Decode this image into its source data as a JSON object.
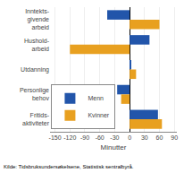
{
  "chart_data": {
    "type": "bar",
    "orientation": "horizontal",
    "categories": [
      "Inntekts-\ngivende\narbeid",
      "Hushold-\narbeid",
      "Utdanning",
      "Personlige\nbehov",
      "Fritids-\naktiviteter"
    ],
    "series": [
      {
        "name": "Menn",
        "color": "#2255aa",
        "values": [
          -45,
          40,
          3,
          -25,
          57
        ]
      },
      {
        "name": "Kvinner",
        "color": "#e8a020",
        "values": [
          60,
          -120,
          13,
          -17,
          65
        ]
      }
    ],
    "xlabel": "Minutter",
    "xlim": [
      -160,
      95
    ],
    "xticks": [
      -150,
      -120,
      -90,
      -60,
      -30,
      0,
      30,
      60,
      90
    ],
    "grid": true,
    "legend": "lower left",
    "annotations": [
      "Kilde: Tidsbruksundersøkelsene, Statistisk sentralbyrå."
    ]
  }
}
